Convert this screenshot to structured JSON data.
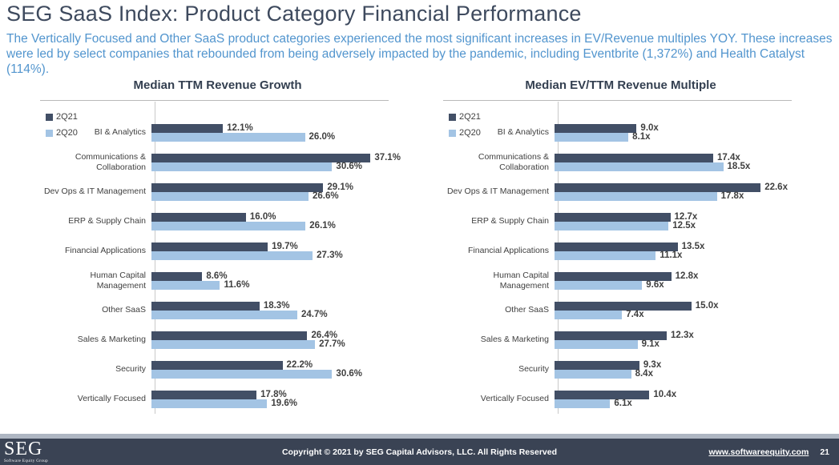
{
  "slide": {
    "title": "SEG SaaS Index: Product Category Financial Performance",
    "subtitle": "The Vertically Focused and Other SaaS product categories experienced the most significant increases in EV/Revenue multiples YOY. These increases were led by select companies that rebounded from being adversely impacted by the pandemic, including Eventbrite (1,372%) and Health Catalyst (114%)."
  },
  "colors": {
    "series_2q21": "#424F66",
    "series_2q20": "#A3C4E4",
    "title_text": "#3E4A5E",
    "subtitle_text": "#5295CE",
    "footer_bg": "#3A4354",
    "footer_strip": "#AEB6C2"
  },
  "chart_data": [
    {
      "type": "bar",
      "orientation": "horizontal",
      "title": "Median TTM Revenue Growth",
      "unit_suffix": "%",
      "legend_position": "top-left",
      "grid": false,
      "xlim": [
        0,
        41.4
      ],
      "categories": [
        "BI & Analytics",
        "Communications & Collaboration",
        "Dev Ops & IT Management",
        "ERP & Supply Chain",
        "Financial Applications",
        "Human Capital Management",
        "Other SaaS",
        "Sales & Marketing",
        "Security",
        "Vertically Focused"
      ],
      "series": [
        {
          "name": "2Q21",
          "color": "#424F66",
          "values": [
            12.1,
            37.1,
            29.1,
            16.0,
            19.7,
            8.6,
            18.3,
            26.4,
            22.2,
            17.8
          ]
        },
        {
          "name": "2Q20",
          "color": "#A3C4E4",
          "values": [
            26.0,
            30.6,
            26.6,
            26.1,
            27.3,
            11.6,
            24.7,
            27.7,
            30.6,
            19.6
          ]
        }
      ]
    },
    {
      "type": "bar",
      "orientation": "horizontal",
      "title": "Median EV/TTM Revenue Multiple",
      "unit_suffix": "x",
      "legend_position": "top-left",
      "grid": false,
      "xlim": [
        0,
        26.8
      ],
      "categories": [
        "BI & Analytics",
        "Communications & Collaboration",
        "Dev Ops & IT Management",
        "ERP & Supply Chain",
        "Financial Applications",
        "Human Capital Management",
        "Other SaaS",
        "Sales & Marketing",
        "Security",
        "Vertically Focused"
      ],
      "series": [
        {
          "name": "2Q21",
          "color": "#424F66",
          "values": [
            9.0,
            17.4,
            22.6,
            12.7,
            13.5,
            12.8,
            15.0,
            12.3,
            9.3,
            10.4
          ]
        },
        {
          "name": "2Q20",
          "color": "#A3C4E4",
          "values": [
            8.1,
            18.5,
            17.8,
            12.5,
            11.1,
            9.6,
            7.4,
            9.1,
            8.4,
            6.1
          ]
        }
      ]
    }
  ],
  "footer": {
    "logo_text": "SEG",
    "logo_subtext": "Software Equity Group",
    "copyright": "Copyright © 2021 by SEG Capital Advisors, LLC. All Rights Reserved",
    "website": "www.softwareequity.com",
    "page_number": "21"
  }
}
